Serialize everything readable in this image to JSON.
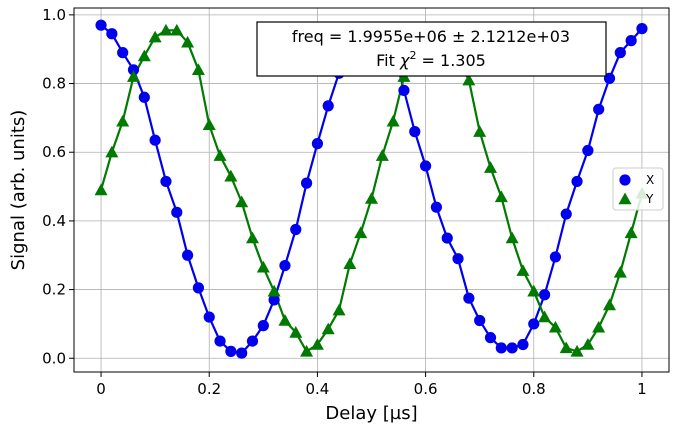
{
  "chart_data": {
    "type": "scatter",
    "xlabel": "Delay [µs]",
    "ylabel": "Signal (arb. units)",
    "xlim": [
      -0.05,
      1.05
    ],
    "ylim": [
      -0.04,
      1.02
    ],
    "xticks": [
      0,
      0.2,
      0.4,
      0.6,
      0.8,
      1
    ],
    "xtick_labels": [
      "0",
      "0.2",
      "0.4",
      "0.6",
      "0.8",
      "1"
    ],
    "yticks": [
      0.0,
      0.2,
      0.4,
      0.6,
      0.8,
      1.0
    ],
    "ytick_labels": [
      "0.0",
      "0.2",
      "0.4",
      "0.6",
      "0.8",
      "1.0"
    ],
    "grid": true,
    "legend_position": "center-right",
    "annotation": {
      "line1": "freq =  1.9955e+06 ±  2.1212e+03",
      "line2_prefix": "Fit ",
      "line2_chi": "χ",
      "line2_sup": "2",
      "line2_suffix": " =  1.305"
    },
    "series": [
      {
        "name": "X",
        "marker": "circle",
        "color": "#0000ee",
        "x": [
          0.0,
          0.02,
          0.04,
          0.06,
          0.08,
          0.1,
          0.12,
          0.14,
          0.16,
          0.18,
          0.2,
          0.22,
          0.24,
          0.26,
          0.28,
          0.3,
          0.32,
          0.34,
          0.36,
          0.38,
          0.4,
          0.42,
          0.44,
          0.46,
          0.48,
          0.5,
          0.52,
          0.54,
          0.56,
          0.58,
          0.6,
          0.62,
          0.64,
          0.66,
          0.68,
          0.7,
          0.72,
          0.74,
          0.76,
          0.78,
          0.8,
          0.82,
          0.84,
          0.86,
          0.88,
          0.9,
          0.92,
          0.94,
          0.96,
          0.98,
          1.0
        ],
        "y": [
          0.97,
          0.945,
          0.89,
          0.84,
          0.76,
          0.635,
          0.515,
          0.425,
          0.3,
          0.205,
          0.12,
          0.05,
          0.02,
          0.015,
          0.05,
          0.095,
          0.17,
          0.27,
          0.375,
          0.51,
          0.625,
          0.735,
          0.83,
          0.89,
          0.95,
          0.955,
          0.93,
          0.9,
          0.78,
          0.66,
          0.56,
          0.44,
          0.35,
          0.29,
          0.175,
          0.11,
          0.06,
          0.03,
          0.03,
          0.04,
          0.1,
          0.185,
          0.295,
          0.42,
          0.515,
          0.605,
          0.725,
          0.815,
          0.89,
          0.925,
          0.96
        ]
      },
      {
        "name": "Y",
        "marker": "triangle",
        "color": "#007a00",
        "x": [
          0.0,
          0.02,
          0.04,
          0.06,
          0.08,
          0.1,
          0.12,
          0.14,
          0.16,
          0.18,
          0.2,
          0.22,
          0.24,
          0.26,
          0.28,
          0.3,
          0.32,
          0.34,
          0.36,
          0.38,
          0.4,
          0.42,
          0.44,
          0.46,
          0.48,
          0.5,
          0.52,
          0.54,
          0.56,
          0.58,
          0.6,
          0.62,
          0.64,
          0.66,
          0.68,
          0.7,
          0.72,
          0.74,
          0.76,
          0.78,
          0.8,
          0.82,
          0.84,
          0.86,
          0.88,
          0.9,
          0.92,
          0.94,
          0.96,
          0.98,
          1.0
        ],
        "y": [
          0.49,
          0.6,
          0.69,
          0.82,
          0.88,
          0.935,
          0.955,
          0.955,
          0.92,
          0.84,
          0.68,
          0.59,
          0.53,
          0.455,
          0.35,
          0.265,
          0.195,
          0.11,
          0.075,
          0.02,
          0.04,
          0.085,
          0.14,
          0.275,
          0.365,
          0.465,
          0.59,
          0.69,
          0.82,
          0.88,
          0.915,
          0.91,
          0.915,
          0.87,
          0.81,
          0.66,
          0.555,
          0.47,
          0.35,
          0.255,
          0.195,
          0.12,
          0.09,
          0.03,
          0.02,
          0.04,
          0.09,
          0.155,
          0.25,
          0.365,
          0.48
        ]
      }
    ]
  }
}
